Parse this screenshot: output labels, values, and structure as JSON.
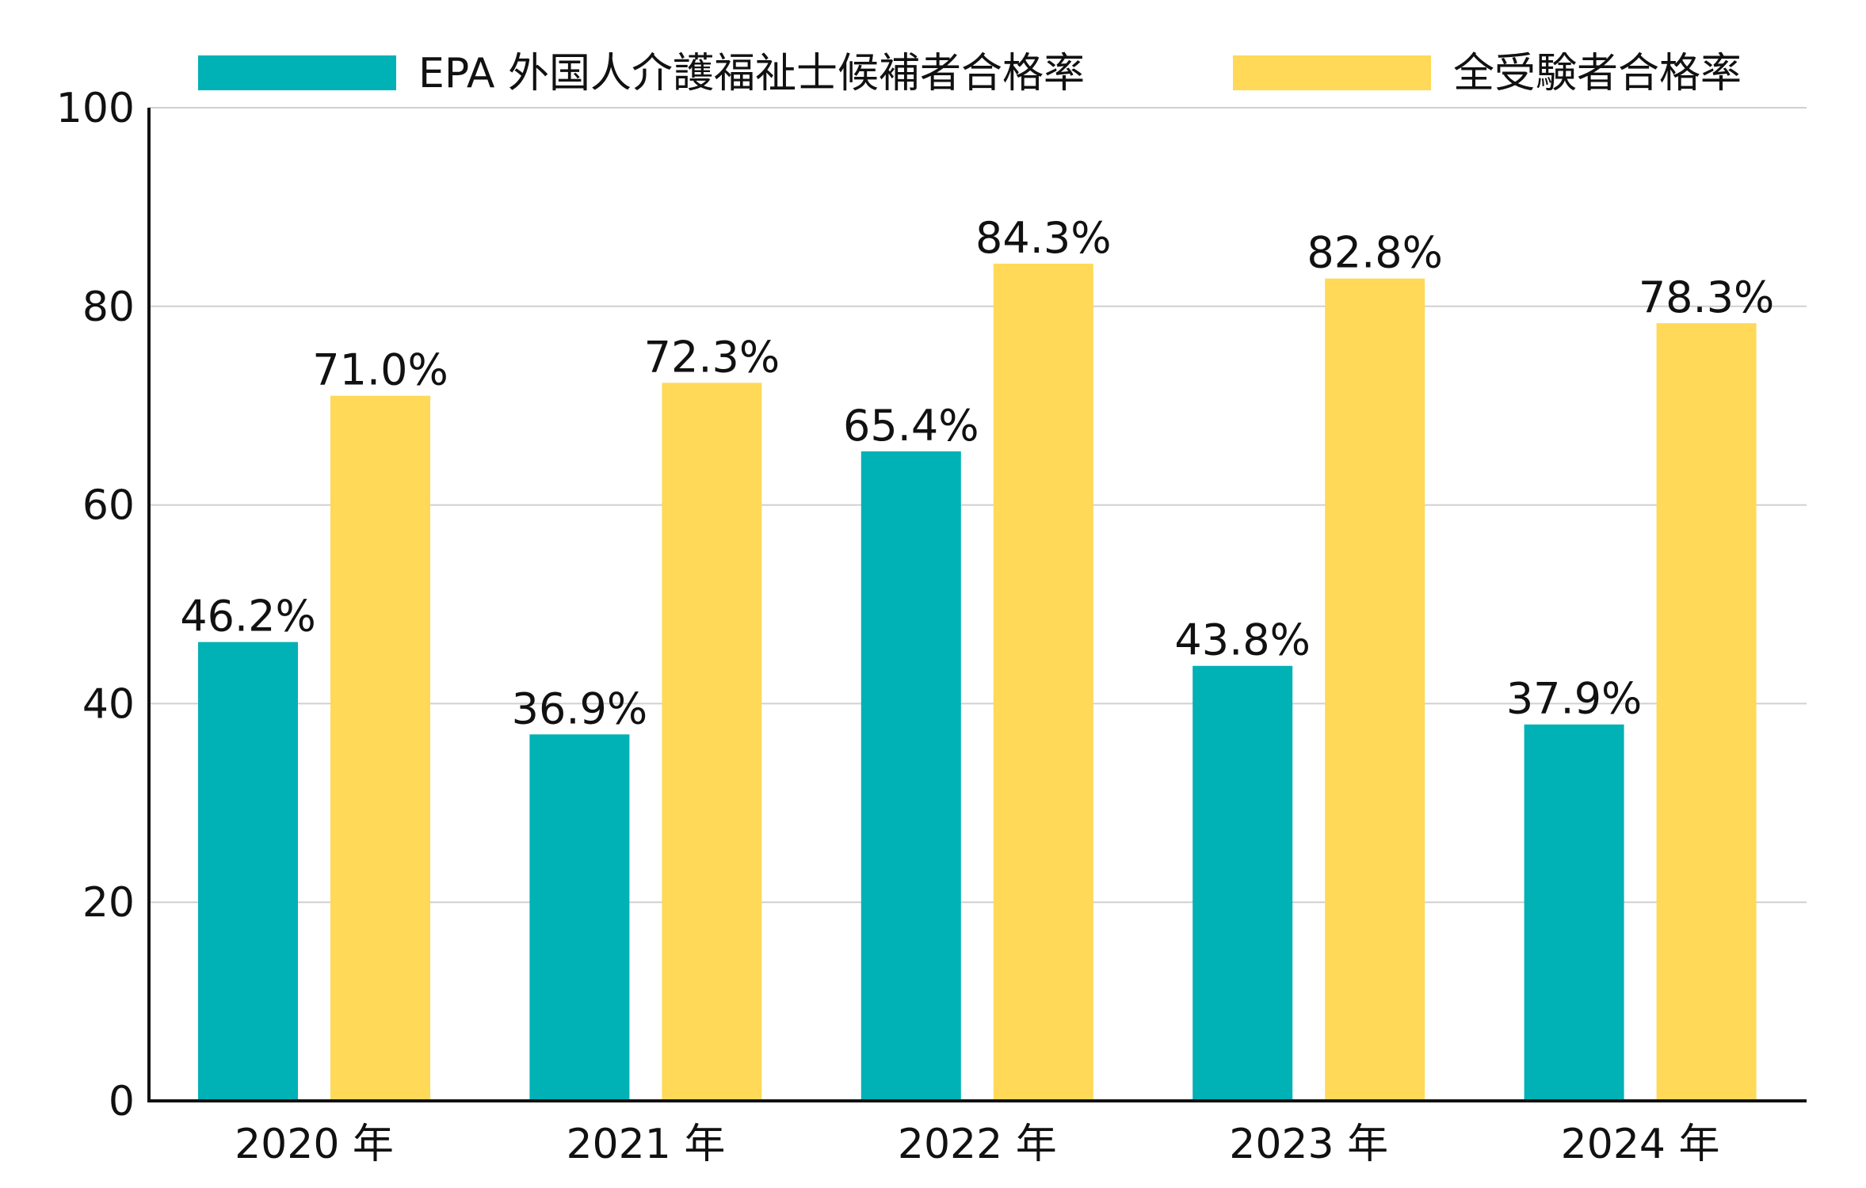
{
  "chart_data": {
    "type": "bar",
    "categories": [
      "2020 年",
      "2021 年",
      "2022 年",
      "2023 年",
      "2024 年"
    ],
    "series": [
      {
        "name": "EPA 外国人介護福祉士候補者合格率",
        "color": "#00b1b5",
        "values": [
          46.2,
          36.9,
          65.4,
          43.8,
          37.9
        ],
        "labels": [
          "46.2%",
          "36.9%",
          "65.4%",
          "43.8%",
          "37.9%"
        ]
      },
      {
        "name": "全受験者合格率",
        "color": "#ffd957",
        "values": [
          71.0,
          72.3,
          84.3,
          82.8,
          78.3
        ],
        "labels": [
          "71.0%",
          "72.3%",
          "84.3%",
          "82.8%",
          "78.3%"
        ]
      }
    ],
    "y_ticks": [
      0,
      20,
      40,
      60,
      80,
      100
    ],
    "ylim": [
      0,
      100
    ],
    "grid": true,
    "legend_position": "top"
  }
}
